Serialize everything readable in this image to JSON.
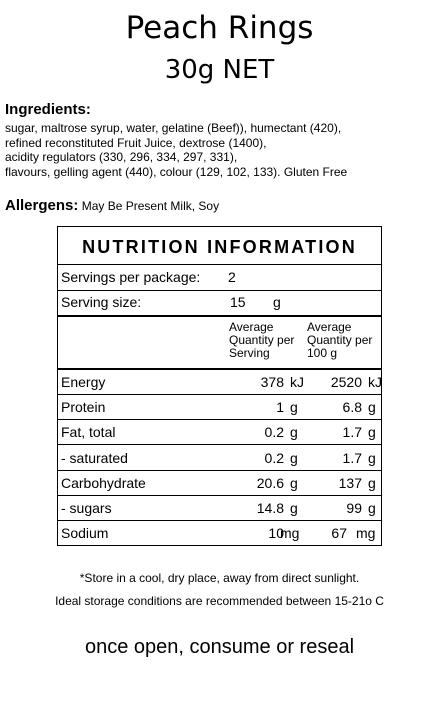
{
  "product": {
    "name": "Peach Rings",
    "net": "30g NET"
  },
  "ingredients": {
    "heading": "Ingredients:",
    "lines": [
      "sugar, maltrose syrup, water, gelatine (Beef)), humectant (420),",
      "refined reconstituted Fruit Juice, dextrose (1400),",
      "acidity regulators (330, 296, 334, 297, 331),",
      "flavours, gelling agent (440), colour (129, 102, 133). Gluten Free"
    ]
  },
  "allergens": {
    "label": "Allergens:",
    "text": "May Be Present Milk, Soy"
  },
  "nutrition": {
    "title": "NUTRITION INFORMATION",
    "servings_label": "Servings per package:",
    "servings_value": "2",
    "serving_size_label": "Serving size:",
    "serving_size_value": "15",
    "serving_size_unit": "g",
    "col_per_serving": [
      "Average",
      "Quantity per",
      "Serving"
    ],
    "col_per_100g": [
      "Average",
      "Quantity per",
      "100 g"
    ],
    "rows": [
      {
        "name": "Energy",
        "serv": "378",
        "serv_unit": "kJ",
        "per100": "2520",
        "per100_unit": "kJ"
      },
      {
        "name": "Protein",
        "serv": "1",
        "serv_unit": "g",
        "per100": "6.8",
        "per100_unit": "g"
      },
      {
        "name": "Fat, total",
        "serv": "0.2",
        "serv_unit": "g",
        "per100": "1.7",
        "per100_unit": "g"
      },
      {
        "name": "- saturated",
        "serv": "0.2",
        "serv_unit": "g",
        "per100": "1.7",
        "per100_unit": "g"
      },
      {
        "name": "Carbohydrate",
        "serv": "20.6",
        "serv_unit": "g",
        "per100": "137",
        "per100_unit": "g"
      },
      {
        "name": "- sugars",
        "serv": "14.8",
        "serv_unit": "g",
        "per100": "99",
        "per100_unit": "g"
      },
      {
        "name": "Sodium",
        "serv": "10",
        "serv_unit": "mg",
        "per100": "67",
        "per100_unit": "mg"
      }
    ]
  },
  "footer": {
    "store": "*Store in a cool, dry place, away from direct sunlight.",
    "ideal": "Ideal storage conditions are recommended between 15-21o C",
    "once_open": "once open, consume or reseal"
  }
}
